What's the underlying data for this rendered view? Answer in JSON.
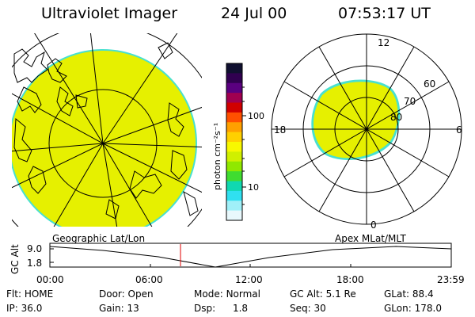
{
  "header": {
    "instrument": "Ultraviolet Imager",
    "date": "24 Jul 00",
    "time": "07:53:17 UT"
  },
  "colorbar": {
    "unit_label": "photon cm⁻²s⁻¹",
    "ticks": [
      "100",
      "10"
    ],
    "colors": [
      "#101030",
      "#300050",
      "#5a0080",
      "#a00050",
      "#d00000",
      "#ff5000",
      "#ffa000",
      "#ffd000",
      "#f8f800",
      "#d0f000",
      "#90e800",
      "#40dc30",
      "#10d8b0",
      "#30e0f0",
      "#a0f0f8",
      "#e8f8fc"
    ]
  },
  "left_panel": {
    "label": "Geographic Lat/Lon",
    "fill_color": "#e6f000",
    "edge_color": "#48e0d0"
  },
  "right_panel": {
    "label": "Apex MLat/MLT",
    "mlt_labels": {
      "top": "12",
      "left": "18",
      "right": "6",
      "bottom": "0"
    },
    "mlat_labels": [
      "60",
      "70",
      "80"
    ]
  },
  "altitude_plot": {
    "ylabel": "GC Alt",
    "yticks": [
      "9.0",
      "1.8"
    ],
    "xticks": [
      "00:00",
      "06:00",
      "12:00",
      "18:00",
      "23:59"
    ],
    "current_marker_color": "#e00000"
  },
  "status": {
    "flt_label": "Flt:",
    "flt_value": "HOME",
    "door_label": "Door:",
    "door_value": "Open",
    "mode_label": "Mode:",
    "mode_value": "Normal",
    "gcalt_label": "GC Alt:",
    "gcalt_value": "5.1 Re",
    "glat_label": "GLat:",
    "glat_value": "88.4",
    "ip_label": "IP:",
    "ip_value": "36.0",
    "gain_label": "Gain:",
    "gain_value": "13",
    "dsp_label": "Dsp:",
    "dsp_value": "1.8",
    "seq_label": "Seq:",
    "seq_value": "30",
    "glon_label": "GLon:",
    "glon_value": "178.0"
  }
}
